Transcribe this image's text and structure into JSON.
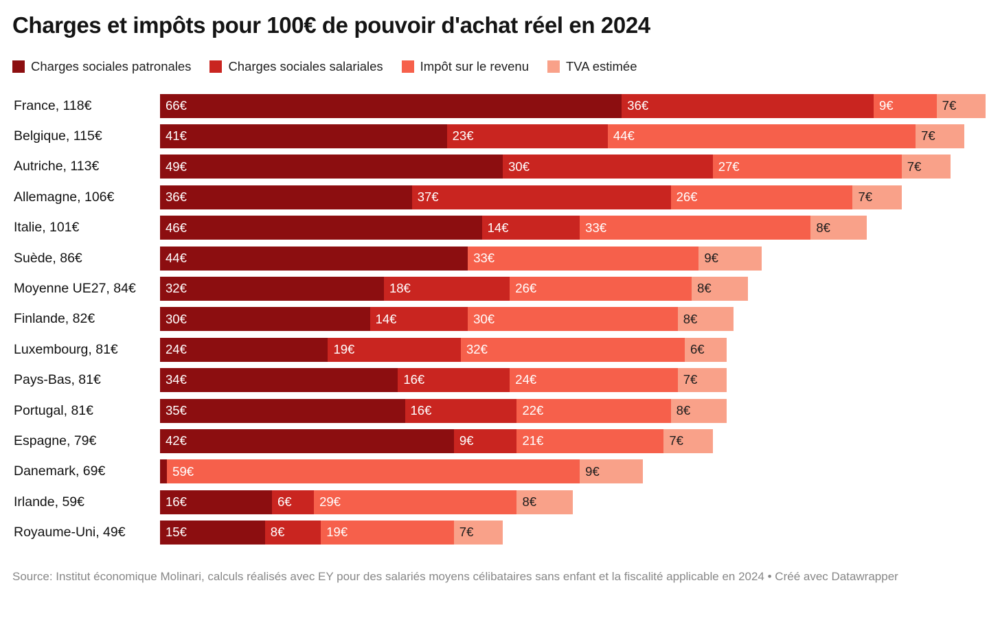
{
  "page": {
    "title": "Charges et impôts pour 100€ de pouvoir d'achat réel en 2024",
    "source_text": "Source: Institut économique Molinari, calculs réalisés avec EY pour des salariés moyens célibataires sans enfant et la fiscalité applicable en 2024",
    "attribution_separator": " • ",
    "attribution": "Créé avec Datawrapper"
  },
  "colors": {
    "charges_sociales_patronales": "#8c0e10",
    "charges_sociales_salariales": "#c92520",
    "impot_sur_le_revenu": "#f6604b",
    "tva_estimee": "#f9a189",
    "value_label_light": "#ffffff",
    "value_label_dark": "#1d1d1d",
    "source_gray": "#878787"
  },
  "chart_data": {
    "type": "bar",
    "stacked": true,
    "orientation": "horizontal",
    "axes": "hidden",
    "grid": false,
    "unit": "€",
    "x_max": 118,
    "min_label_value": 2,
    "title": "Charges et impôts pour 100€ de pouvoir d'achat réel en 2024",
    "legend_position": "top",
    "legend": [
      {
        "key": "charges-sociales-patronales",
        "label": "Charges sociales patronales",
        "color": "#8c0e10",
        "value_label_color": "#ffffff"
      },
      {
        "key": "charges-sociales-salariales",
        "label": "Charges sociales salariales",
        "color": "#c92520",
        "value_label_color": "#ffffff"
      },
      {
        "key": "impot-sur-le-revenu",
        "label": "Impôt sur le revenu",
        "color": "#f6604b",
        "value_label_color": "#ffffff"
      },
      {
        "key": "tva-estimee",
        "label": "TVA estimée",
        "color": "#f9a189",
        "value_label_color": "#1d1d1d"
      }
    ],
    "rows": [
      {
        "label": "France, 118€",
        "country": "France",
        "total": 118,
        "values": [
          66,
          36,
          9,
          7
        ]
      },
      {
        "label": "Belgique, 115€",
        "country": "Belgique",
        "total": 115,
        "values": [
          41,
          23,
          44,
          7
        ]
      },
      {
        "label": "Autriche, 113€",
        "country": "Autriche",
        "total": 113,
        "values": [
          49,
          30,
          27,
          7
        ]
      },
      {
        "label": "Allemagne, 106€",
        "country": "Allemagne",
        "total": 106,
        "values": [
          36,
          37,
          26,
          7
        ]
      },
      {
        "label": "Italie, 101€",
        "country": "Italie",
        "total": 101,
        "values": [
          46,
          14,
          33,
          8
        ]
      },
      {
        "label": "Suède, 86€",
        "country": "Suède",
        "total": 86,
        "values": [
          44,
          0,
          33,
          9
        ]
      },
      {
        "label": "Moyenne UE27, 84€",
        "country": "Moyenne UE27",
        "total": 84,
        "values": [
          32,
          18,
          26,
          8
        ]
      },
      {
        "label": "Finlande, 82€",
        "country": "Finlande",
        "total": 82,
        "values": [
          30,
          14,
          30,
          8
        ]
      },
      {
        "label": "Luxembourg, 81€",
        "country": "Luxembourg",
        "total": 81,
        "values": [
          24,
          19,
          32,
          6
        ]
      },
      {
        "label": "Pays-Bas, 81€",
        "country": "Pays-Bas",
        "total": 81,
        "values": [
          34,
          16,
          24,
          7
        ]
      },
      {
        "label": "Portugal, 81€",
        "country": "Portugal",
        "total": 81,
        "values": [
          35,
          16,
          22,
          8
        ]
      },
      {
        "label": "Espagne, 79€",
        "country": "Espagne",
        "total": 79,
        "values": [
          42,
          9,
          21,
          7
        ]
      },
      {
        "label": "Danemark, 69€",
        "country": "Danemark",
        "total": 69,
        "values": [
          1,
          0,
          59,
          9
        ]
      },
      {
        "label": "Irlande, 59€",
        "country": "Irlande",
        "total": 59,
        "values": [
          16,
          6,
          29,
          8
        ]
      },
      {
        "label": "Royaume-Uni, 49€",
        "country": "Royaume-Uni",
        "total": 49,
        "values": [
          15,
          8,
          19,
          7
        ]
      }
    ]
  }
}
